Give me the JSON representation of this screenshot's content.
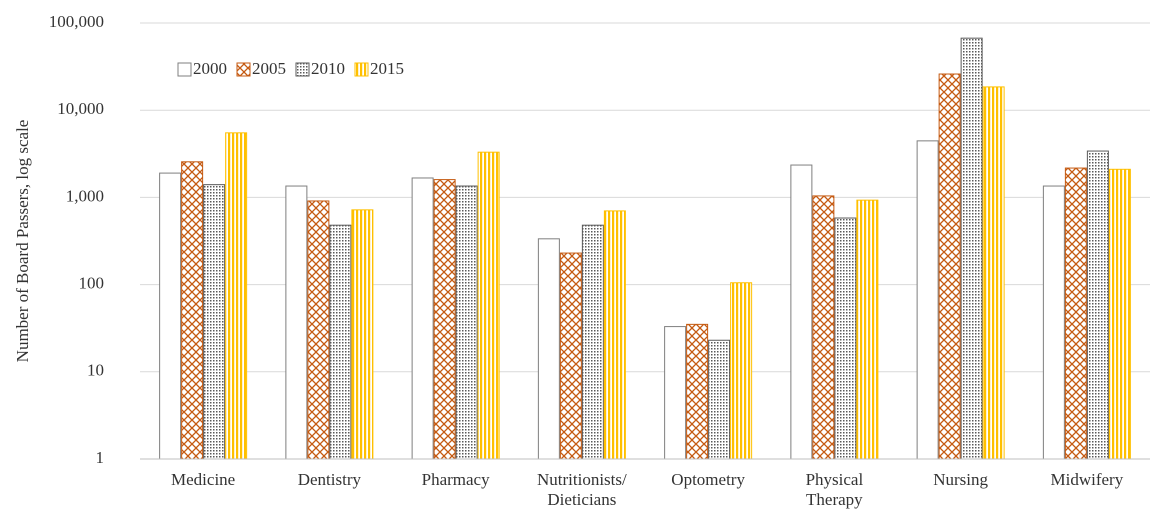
{
  "chart_data": {
    "type": "bar",
    "ylabel": "Number of Board Passers, log scale",
    "log_scale": true,
    "grid": true,
    "legend": "upper left",
    "categories": [
      "Medicine",
      "Dentistry",
      "Pharmacy",
      "Nutritionists/ Dieticians",
      "Optometry",
      "Physical Therapy",
      "Nursing",
      "Midwifery"
    ],
    "series": [
      {
        "name": "2000",
        "color": "#7f7f7f",
        "values": [
          1900,
          1350,
          1670,
          335,
          33,
          2350,
          4450,
          1350
        ]
      },
      {
        "name": "2005",
        "color": "#c55a11",
        "values": [
          2560,
          910,
          1600,
          230,
          35,
          1040,
          26000,
          2170
        ]
      },
      {
        "name": "2010",
        "color": "#595959",
        "values": [
          1400,
          480,
          1350,
          480,
          23,
          580,
          67000,
          3400
        ]
      },
      {
        "name": "2015",
        "color": "#ffc000",
        "values": [
          5500,
          720,
          3300,
          700,
          105,
          930,
          18500,
          2100
        ]
      }
    ],
    "ylim": [
      1,
      100000
    ],
    "yticks": [
      1,
      10,
      100,
      {
        "value": 1000,
        "label": "1,000"
      },
      {
        "value": 10000,
        "label": "10,000"
      },
      {
        "value": 100000,
        "label": "100,000"
      }
    ]
  }
}
